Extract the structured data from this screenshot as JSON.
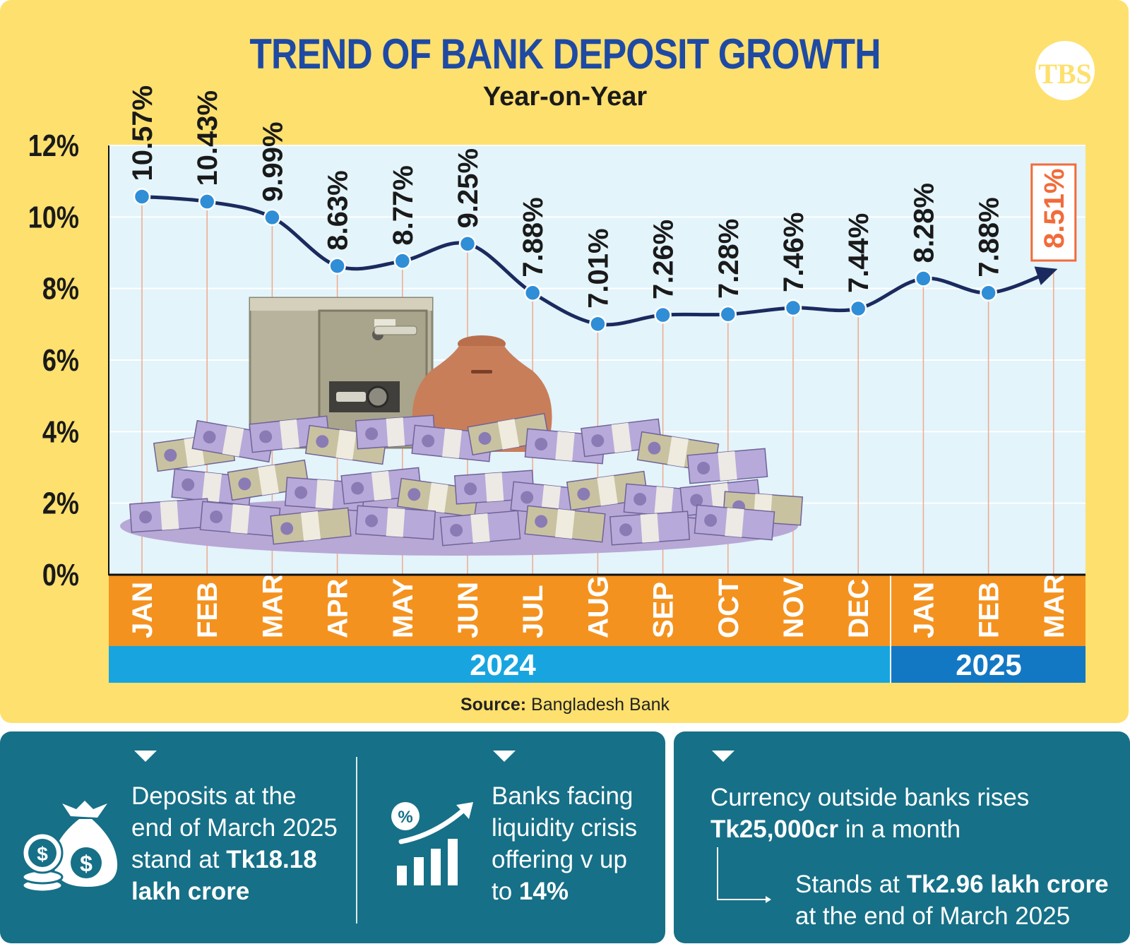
{
  "title": "TREND OF BANK DEPOSIT GROWTH",
  "subtitle": "Year-on-Year",
  "logo": {
    "text": "TBS",
    "color": "#fee06e"
  },
  "colors": {
    "panel": "#fee06e",
    "plot_bg": "#e3f4fb",
    "line": "#1b2a5e",
    "points": "#2f8ed6",
    "month_band": "#f4921f",
    "year_band_2024": "#18a5df",
    "year_band_2025": "#1378c4",
    "highlight_label": "#f26b3a",
    "info_box": "#167087"
  },
  "chart_data": {
    "type": "line",
    "categories": [
      "JAN",
      "FEB",
      "MAR",
      "APR",
      "MAY",
      "JUN",
      "JUL",
      "AUG",
      "SEP",
      "OCT",
      "NOV",
      "DEC",
      "JAN",
      "FEB",
      "MAR"
    ],
    "values": [
      10.57,
      10.43,
      9.99,
      8.63,
      8.77,
      9.25,
      7.88,
      7.01,
      7.26,
      7.28,
      7.46,
      7.44,
      8.28,
      7.88,
      8.51
    ],
    "data_labels": [
      "10.57%",
      "10.43%",
      "9.99%",
      "8.63%",
      "8.77%",
      "9.25%",
      "7.88%",
      "7.01%",
      "7.26%",
      "7.28%",
      "7.46%",
      "7.44%",
      "8.28%",
      "7.88%",
      "8.51%"
    ],
    "highlight_index": 14,
    "years": [
      {
        "label": "2024",
        "months": 12
      },
      {
        "label": "2025",
        "months": 3
      }
    ],
    "yticks": [
      "0%",
      "2%",
      "4%",
      "6%",
      "8%",
      "10%",
      "12%"
    ],
    "ylim": [
      0,
      12
    ],
    "grid": true
  },
  "source": {
    "label": "Source:",
    "text": "Bangladesh Bank"
  },
  "info": {
    "deposits": {
      "lines": [
        "Deposits at the",
        "end of March 2025",
        "stand at "
      ],
      "bold": "Tk18.18",
      "bold_line2": "lakh crore"
    },
    "liquidity": {
      "lines": [
        "Banks facing",
        "liquidity crisis",
        "offering v up",
        "to "
      ],
      "bold": "14%"
    },
    "currency": {
      "line1": "Currency outside banks rises",
      "bold": "Tk25,000cr",
      "line2_rest": " in a month",
      "stands_prefix": "Stands at ",
      "stands_bold": "Tk2.96 lakh crore",
      "stands_line2": "at the end of March 2025"
    }
  },
  "icons": {
    "money_bag": "money-bag-icon",
    "coins": "coins-icon",
    "percent_growth": "percent-growth-chart-icon",
    "safe": "safe-illustration",
    "pot": "clay-pot-illustration",
    "money": "banknote-pile-illustration"
  }
}
